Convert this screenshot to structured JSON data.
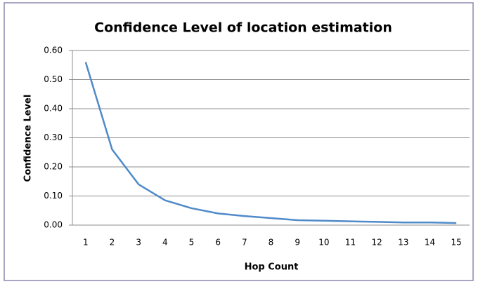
{
  "chart_data": {
    "type": "line",
    "title": "Confidence Level of location estimation",
    "xlabel": "Hop Count",
    "ylabel": "Confidence Level",
    "categories": [
      "1",
      "2",
      "3",
      "4",
      "5",
      "6",
      "7",
      "8",
      "9",
      "10",
      "11",
      "12",
      "13",
      "14",
      "15"
    ],
    "series": [
      {
        "name": "Confidence Level",
        "color": "#4f8ac9",
        "values": [
          0.56,
          0.26,
          0.14,
          0.085,
          0.058,
          0.04,
          0.031,
          0.024,
          0.017,
          0.015,
          0.013,
          0.011,
          0.009,
          0.009,
          0.007
        ]
      }
    ],
    "ylim": [
      0,
      0.6
    ],
    "yticks": [
      {
        "value": 0,
        "label": "0.00"
      },
      {
        "value": 0.1,
        "label": "0.10"
      },
      {
        "value": 0.2,
        "label": "0.20"
      },
      {
        "value": 0.3,
        "label": "0.30"
      },
      {
        "value": 0.4,
        "label": "0.40"
      },
      {
        "value": 0.5,
        "label": "0.50"
      },
      {
        "value": 0.6,
        "label": "0.60"
      }
    ],
    "grid": true
  }
}
